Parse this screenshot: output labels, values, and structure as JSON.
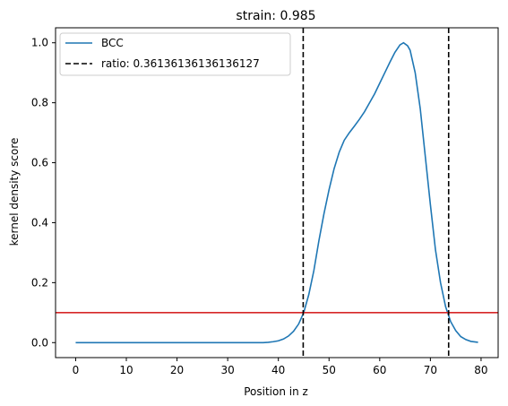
{
  "chart_data": {
    "type": "line",
    "title": "strain: 0.985",
    "xlabel": "Position in z",
    "ylabel": "kernel density score",
    "xlim": [
      -3.97,
      83.37
    ],
    "ylim": [
      -0.05,
      1.05
    ],
    "xticks": [
      0,
      10,
      20,
      30,
      40,
      50,
      60,
      70,
      80
    ],
    "xtick_labels": [
      "0",
      "10",
      "20",
      "30",
      "40",
      "50",
      "60",
      "70",
      "80"
    ],
    "yticks": [
      0.0,
      0.2,
      0.4,
      0.6,
      0.8,
      1.0
    ],
    "ytick_labels": [
      "0.0",
      "0.2",
      "0.4",
      "0.6",
      "0.8",
      "1.0"
    ],
    "grid": false,
    "legend_position": "upper-left",
    "series": [
      {
        "name": "BCC",
        "color": "#1f77b4",
        "style": "solid",
        "x": [
          0,
          5,
          10,
          15,
          20,
          25,
          30,
          35,
          37,
          38,
          39,
          40,
          41,
          42,
          43,
          44,
          45,
          46,
          47,
          48,
          49,
          50,
          51,
          52,
          53,
          54,
          55,
          56,
          57,
          58,
          59,
          60,
          61,
          62,
          63,
          64,
          64.7,
          65.5,
          66,
          67,
          68,
          69,
          70,
          71,
          72,
          73,
          74,
          75,
          76,
          77,
          78,
          79.4
        ],
        "y": [
          0,
          0,
          0,
          0,
          0,
          0,
          0,
          0,
          0,
          0.001,
          0.003,
          0.006,
          0.012,
          0.022,
          0.038,
          0.062,
          0.1,
          0.16,
          0.24,
          0.34,
          0.43,
          0.51,
          0.58,
          0.635,
          0.675,
          0.7,
          0.722,
          0.745,
          0.77,
          0.8,
          0.83,
          0.865,
          0.9,
          0.935,
          0.968,
          0.993,
          1.0,
          0.99,
          0.975,
          0.9,
          0.78,
          0.62,
          0.46,
          0.31,
          0.2,
          0.12,
          0.07,
          0.04,
          0.02,
          0.01,
          0.004,
          0.001
        ]
      }
    ],
    "vlines": [
      {
        "label": "ratio: 0.36136136136136127",
        "x": [
          44.9,
          73.6
        ],
        "color": "#000000",
        "style": "dashed"
      }
    ],
    "hline": {
      "y": 0.1,
      "color": "#d62728"
    }
  }
}
